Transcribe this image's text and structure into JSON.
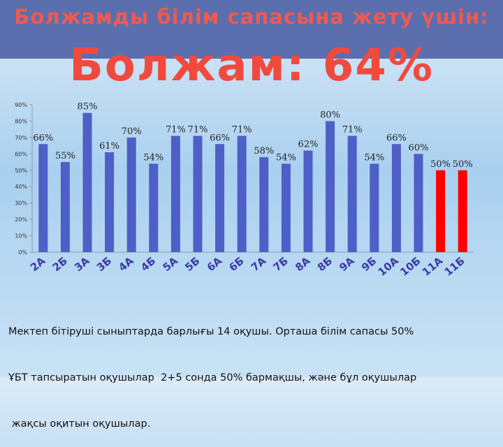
{
  "slide": {
    "title": "Болжамды білім сапасына жету үшін:",
    "forecast": "Болжам: 64%",
    "note_lines": [
      "Мектеп бітіруші сыныптарда барлығы 14 оқушы. Орташа білім сапасы 50%",
      "ҰБТ тапсыратын оқушылар  2+5 сонда 50% бармақшы, және бұл оқушылар",
      " жақсы оқитын оқушылар."
    ]
  },
  "chart_data": {
    "type": "bar",
    "categories": [
      "2А",
      "2Б",
      "3А",
      "3Б",
      "4А",
      "4Б",
      "5А",
      "5Б",
      "6А",
      "6Б",
      "7А",
      "7Б",
      "8А",
      "8Б",
      "9А",
      "9Б",
      "10А",
      "10Б",
      "11А",
      "11Б"
    ],
    "values": [
      66,
      55,
      85,
      61,
      70,
      54,
      71,
      71,
      66,
      71,
      58,
      54,
      62,
      80,
      71,
      54,
      66,
      60,
      50,
      50
    ],
    "data_labels": [
      "66%",
      "55%",
      "85%",
      "61%",
      "70%",
      "54%",
      "71%",
      "71%",
      "66%",
      "71%",
      "58%",
      "54%",
      "62%",
      "80%",
      "71%",
      "54%",
      "66%",
      "60%",
      "50%",
      "50%"
    ],
    "y_ticks": [
      "0%",
      "10%",
      "20%",
      "30%",
      "40%",
      "50%",
      "60%",
      "70%",
      "80%",
      "90%"
    ],
    "ylim": [
      0,
      90
    ],
    "grid": false,
    "legend": "none",
    "colors": {
      "default": "#4e5fc7",
      "highlight": "#ff0000"
    },
    "highlight_categories": [
      "11А",
      "11Б"
    ]
  }
}
